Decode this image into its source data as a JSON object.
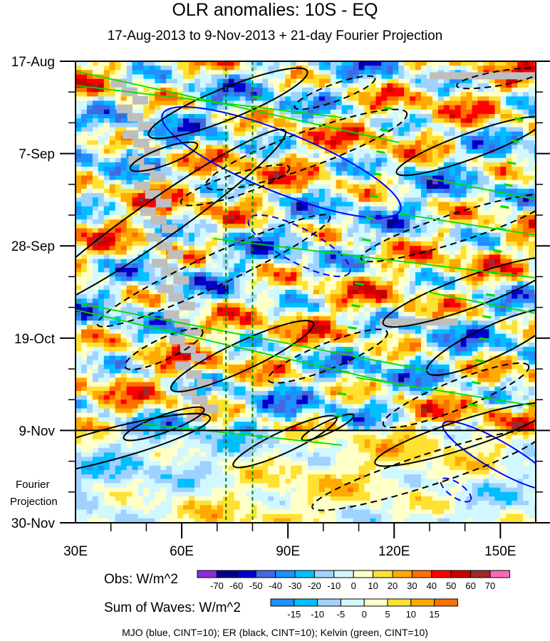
{
  "chart_data": {
    "type": "heatmap",
    "title": "OLR anomalies: 10S - EQ",
    "subtitle": "17-Aug-2013 to 9-Nov-2013 + 21-day Fourier Projection",
    "x_ticks": [
      "30E",
      "60E",
      "90E",
      "120E",
      "150E"
    ],
    "x_tick_values": [
      30,
      60,
      90,
      120,
      150
    ],
    "xlim": [
      30,
      160
    ],
    "y_ticks": [
      "17-Aug",
      "7-Sep",
      "28-Sep",
      "19-Oct",
      "9-Nov",
      "30-Nov"
    ],
    "y_tick_days": [
      0,
      21,
      42,
      63,
      84,
      105
    ],
    "projection_label": [
      "Fourier",
      "Projection"
    ],
    "projection_start_day": 84,
    "reference_lines_lon": [
      72.5,
      80
    ],
    "obs_colorbar": {
      "label": "Obs: W/m^2",
      "levels": [
        "-70",
        "-60",
        "-50",
        "-40",
        "-30",
        "-20",
        "-10",
        "0",
        "10",
        "20",
        "30",
        "40",
        "50",
        "60",
        "70"
      ],
      "colors": [
        "#8a2be2",
        "#00008b",
        "#0000cd",
        "#4169e1",
        "#1e90ff",
        "#00bfff",
        "#a0d2ff",
        "#d2f8ff",
        "#ffffc8",
        "#ffe132",
        "#ffaa00",
        "#ff6e00",
        "#ff0000",
        "#c80000",
        "#a02828",
        "#ff69b4"
      ]
    },
    "waves_colorbar": {
      "label": "Sum of Waves: W/m^2",
      "levels": [
        "-15",
        "-10",
        "-5",
        "0",
        "5",
        "10",
        "15"
      ],
      "colors": [
        "#1e90ff",
        "#00bfff",
        "#a0d2ff",
        "#d2f8ff",
        "#ffffc8",
        "#ffe132",
        "#ffaa00",
        "#ff6e00"
      ]
    },
    "legend_note": "MJO (blue, CINT=10); ER (black, CINT=10); Kelvin (green, CINT=10)",
    "contour_colors": {
      "MJO": "#0000ff",
      "ER": "#000000",
      "Kelvin": "#00dd00"
    }
  }
}
